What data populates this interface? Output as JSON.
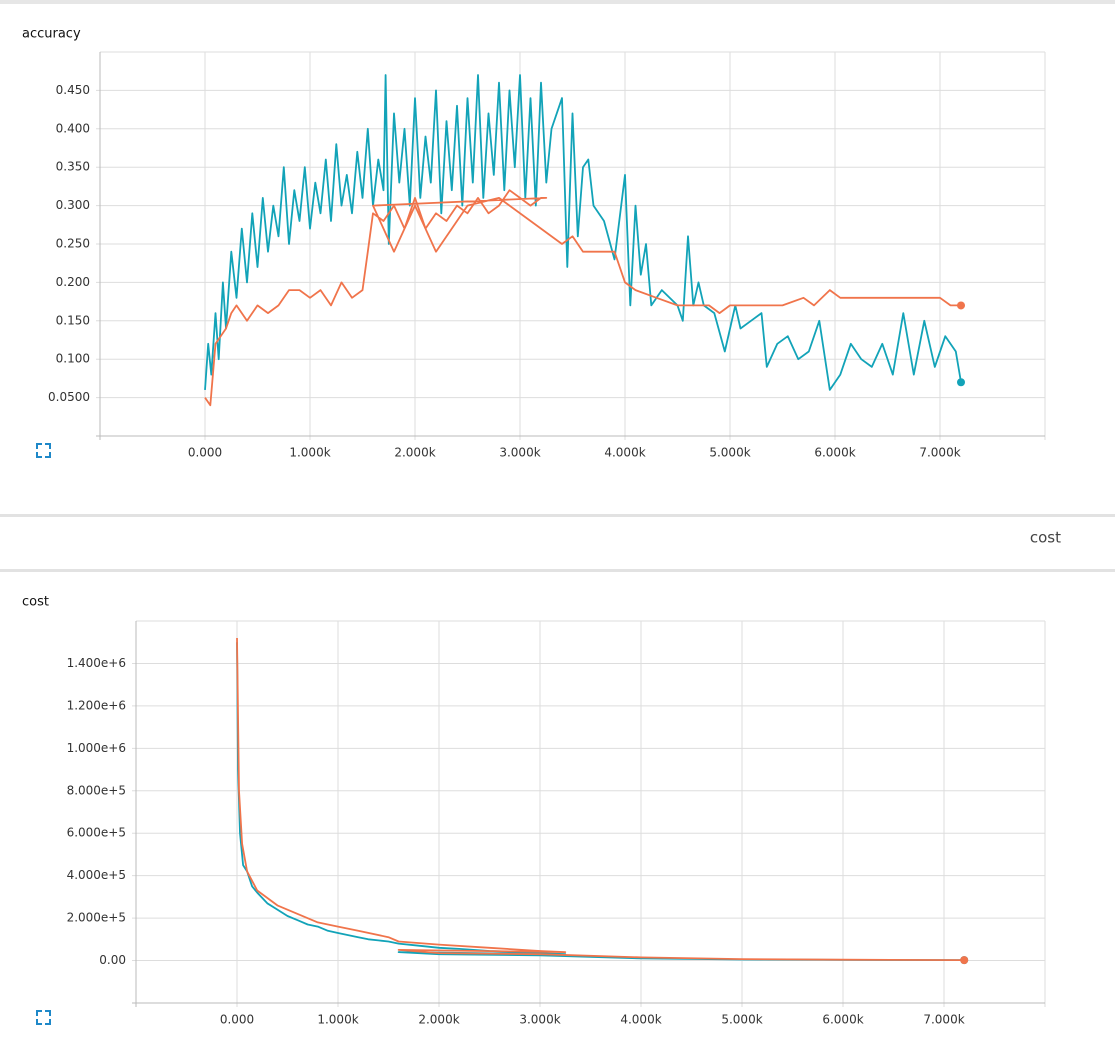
{
  "section_header": "cost",
  "chart_data": [
    {
      "type": "line",
      "title": "accuracy",
      "xlim": [
        -1000,
        8000
      ],
      "ylim": [
        0,
        0.5
      ],
      "xticks": [
        {
          "value": 0,
          "label": "0.000"
        },
        {
          "value": 1000,
          "label": "1.000k"
        },
        {
          "value": 2000,
          "label": "2.000k"
        },
        {
          "value": 3000,
          "label": "3.000k"
        },
        {
          "value": 4000,
          "label": "4.000k"
        },
        {
          "value": 5000,
          "label": "5.000k"
        },
        {
          "value": 6000,
          "label": "6.000k"
        },
        {
          "value": 7000,
          "label": "7.000k"
        }
      ],
      "yticks": [
        {
          "value": 0.05,
          "label": "0.0500"
        },
        {
          "value": 0.1,
          "label": "0.100"
        },
        {
          "value": 0.15,
          "label": "0.150"
        },
        {
          "value": 0.2,
          "label": "0.200"
        },
        {
          "value": 0.25,
          "label": "0.250"
        },
        {
          "value": 0.3,
          "label": "0.300"
        },
        {
          "value": 0.35,
          "label": "0.350"
        },
        {
          "value": 0.4,
          "label": "0.400"
        },
        {
          "value": 0.45,
          "label": "0.450"
        }
      ],
      "grid": true,
      "series": [
        {
          "color": "#12a3b8",
          "x": [
            0,
            30,
            60,
            100,
            130,
            170,
            200,
            250,
            300,
            350,
            400,
            450,
            500,
            550,
            600,
            650,
            700,
            750,
            800,
            850,
            900,
            950,
            1000,
            1050,
            1100,
            1150,
            1200,
            1250,
            1300,
            1350,
            1400,
            1450,
            1500,
            1550,
            1600,
            1650,
            1700,
            1720,
            1750,
            1800,
            1850,
            1900,
            1950,
            2000,
            2050,
            2100,
            2150,
            2200,
            2250,
            2300,
            2350,
            2400,
            2450,
            2500,
            2550,
            2600,
            2650,
            2700,
            2750,
            2800,
            2850,
            2900,
            2950,
            3000,
            3050,
            3100,
            3150,
            3200,
            3250,
            3300,
            3400,
            3450,
            3500,
            3550,
            3600,
            3650,
            3700,
            3800,
            3900,
            4000,
            4050,
            4100,
            4150,
            4200,
            4250,
            4350,
            4500,
            4550,
            4600,
            4650,
            4700,
            4750,
            4850,
            4950,
            5050,
            5100,
            5200,
            5300,
            5350,
            5450,
            5550,
            5650,
            5750,
            5850,
            5950,
            6050,
            6150,
            6250,
            6350,
            6450,
            6550,
            6650,
            6750,
            6850,
            6950,
            7050,
            7150,
            7200
          ],
          "values": [
            0.06,
            0.12,
            0.08,
            0.16,
            0.1,
            0.2,
            0.14,
            0.24,
            0.18,
            0.27,
            0.2,
            0.29,
            0.22,
            0.31,
            0.24,
            0.3,
            0.26,
            0.35,
            0.25,
            0.32,
            0.28,
            0.35,
            0.27,
            0.33,
            0.29,
            0.36,
            0.28,
            0.38,
            0.3,
            0.34,
            0.29,
            0.37,
            0.31,
            0.4,
            0.3,
            0.36,
            0.32,
            0.47,
            0.25,
            0.42,
            0.33,
            0.4,
            0.3,
            0.44,
            0.31,
            0.39,
            0.33,
            0.45,
            0.29,
            0.41,
            0.32,
            0.43,
            0.3,
            0.44,
            0.33,
            0.47,
            0.31,
            0.42,
            0.34,
            0.46,
            0.32,
            0.45,
            0.35,
            0.47,
            0.31,
            0.44,
            0.3,
            0.46,
            0.33,
            0.4,
            0.44,
            0.22,
            0.42,
            0.26,
            0.35,
            0.36,
            0.3,
            0.28,
            0.23,
            0.34,
            0.17,
            0.3,
            0.21,
            0.25,
            0.17,
            0.19,
            0.17,
            0.15,
            0.26,
            0.17,
            0.2,
            0.17,
            0.16,
            0.11,
            0.17,
            0.14,
            0.15,
            0.16,
            0.09,
            0.12,
            0.13,
            0.1,
            0.11,
            0.15,
            0.06,
            0.08,
            0.12,
            0.1,
            0.09,
            0.12,
            0.08,
            0.16,
            0.08,
            0.15,
            0.09,
            0.13,
            0.11,
            0.07
          ]
        },
        {
          "color": "#f0744b",
          "x": [
            0,
            50,
            100,
            200,
            250,
            300,
            400,
            500,
            600,
            700,
            800,
            900,
            1000,
            1100,
            1200,
            1300,
            1400,
            1500,
            1550,
            1600,
            1700,
            1800,
            1900,
            2000,
            2100,
            2200,
            2300,
            2400,
            2500,
            2600,
            2700,
            2800,
            2900,
            3000,
            3100,
            3200,
            3250,
            1600,
            1800,
            2000,
            2200,
            2500,
            2800,
            3200,
            3400,
            3500,
            3600,
            3900,
            4000,
            4100,
            4300,
            4500,
            4800,
            4900,
            5000,
            5500,
            5700,
            5800,
            5950,
            6050,
            7000,
            7100,
            7200
          ],
          "values": [
            0.05,
            0.04,
            0.12,
            0.14,
            0.16,
            0.17,
            0.15,
            0.17,
            0.16,
            0.17,
            0.19,
            0.19,
            0.18,
            0.19,
            0.17,
            0.2,
            0.18,
            0.19,
            0.24,
            0.29,
            0.28,
            0.3,
            0.27,
            0.31,
            0.27,
            0.29,
            0.28,
            0.3,
            0.29,
            0.31,
            0.29,
            0.3,
            0.32,
            0.31,
            0.3,
            0.31,
            0.31,
            0.3,
            0.24,
            0.3,
            0.24,
            0.3,
            0.31,
            0.27,
            0.25,
            0.26,
            0.24,
            0.24,
            0.2,
            0.19,
            0.18,
            0.17,
            0.17,
            0.16,
            0.17,
            0.17,
            0.18,
            0.17,
            0.19,
            0.18,
            0.18,
            0.17,
            0.17
          ]
        }
      ]
    },
    {
      "type": "line",
      "title": "cost",
      "xlim": [
        -1000,
        8000
      ],
      "ylim": [
        -200000,
        1600000
      ],
      "xticks": [
        {
          "value": 0,
          "label": "0.000"
        },
        {
          "value": 1000,
          "label": "1.000k"
        },
        {
          "value": 2000,
          "label": "2.000k"
        },
        {
          "value": 3000,
          "label": "3.000k"
        },
        {
          "value": 4000,
          "label": "4.000k"
        },
        {
          "value": 5000,
          "label": "5.000k"
        },
        {
          "value": 6000,
          "label": "6.000k"
        },
        {
          "value": 7000,
          "label": "7.000k"
        }
      ],
      "yticks": [
        {
          "value": 0,
          "label": "0.00"
        },
        {
          "value": 200000,
          "label": "2.000e+5"
        },
        {
          "value": 400000,
          "label": "4.000e+5"
        },
        {
          "value": 600000,
          "label": "6.000e+5"
        },
        {
          "value": 800000,
          "label": "8.000e+5"
        },
        {
          "value": 1000000,
          "label": "1.000e+6"
        },
        {
          "value": 1200000,
          "label": "1.200e+6"
        },
        {
          "value": 1400000,
          "label": "1.400e+6"
        }
      ],
      "grid": true,
      "series": [
        {
          "color": "#12a3b8",
          "x": [
            0,
            10,
            30,
            60,
            100,
            150,
            200,
            300,
            400,
            500,
            600,
            700,
            800,
            900,
            1000,
            1100,
            1200,
            1300,
            1400,
            1500,
            1600,
            1800,
            2000,
            2200,
            2500,
            2800,
            3000,
            3250,
            1600,
            2000,
            3000,
            4000,
            5000,
            6000,
            7200
          ],
          "values": [
            1500000,
            900000,
            600000,
            450000,
            420000,
            350000,
            320000,
            270000,
            240000,
            210000,
            190000,
            170000,
            160000,
            140000,
            130000,
            120000,
            110000,
            100000,
            95000,
            90000,
            80000,
            70000,
            60000,
            55000,
            45000,
            40000,
            35000,
            30000,
            40000,
            30000,
            25000,
            10000,
            5000,
            3000,
            2000
          ]
        },
        {
          "color": "#f0744b",
          "x": [
            0,
            20,
            50,
            100,
            200,
            400,
            600,
            800,
            1000,
            1200,
            1500,
            1600,
            2000,
            2500,
            3000,
            3250,
            1600,
            2000,
            3000,
            4000,
            5000,
            6000,
            7200
          ],
          "values": [
            1520000,
            800000,
            550000,
            420000,
            330000,
            260000,
            220000,
            180000,
            160000,
            140000,
            110000,
            90000,
            75000,
            60000,
            45000,
            40000,
            50000,
            35000,
            30000,
            15000,
            7000,
            4000,
            2000
          ]
        }
      ]
    }
  ]
}
